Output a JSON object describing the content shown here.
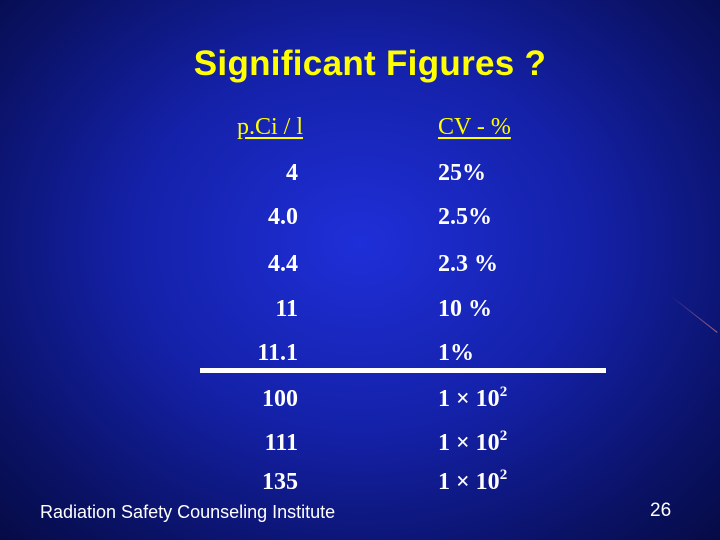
{
  "slide": {
    "title": "Significant Figures ?",
    "footer": "Radiation Safety Counseling Institute",
    "page_number": "26"
  },
  "table": {
    "headers": {
      "left": "p.Ci / l",
      "right": "CV - %"
    },
    "rows": [
      {
        "left": "4",
        "right": "25%"
      },
      {
        "left": "4.0",
        "right": "2.5%"
      },
      {
        "left": "4.4",
        "right": "2.3 %"
      },
      {
        "left": "11",
        "right": "10 %"
      },
      {
        "left": "11.1",
        "right": "1%"
      },
      {
        "left": "100",
        "right_base": "1 × 10",
        "right_exp": "2"
      },
      {
        "left": "111",
        "right_base": "1 × 10",
        "right_exp": "2"
      },
      {
        "left": "135",
        "right_base": "1 × 10",
        "right_exp": "2"
      }
    ]
  },
  "colors": {
    "background": "#1421a8",
    "title": "#ffff00",
    "text": "#ffffff"
  }
}
